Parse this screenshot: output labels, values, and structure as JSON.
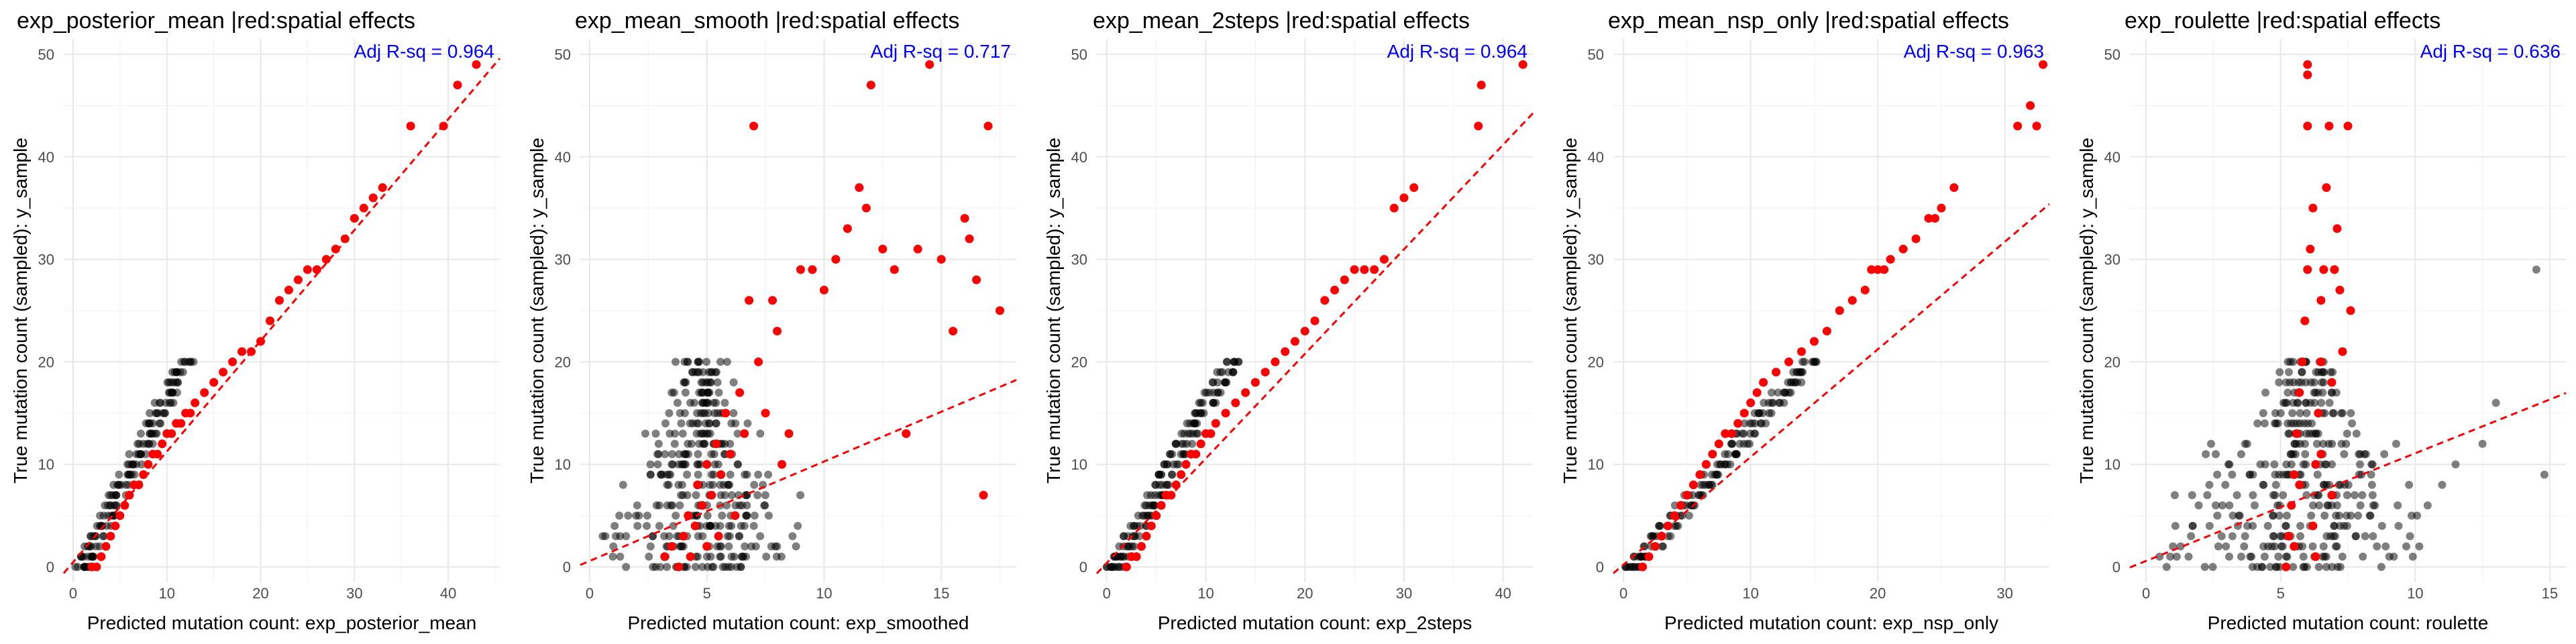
{
  "colors": {
    "red_points": "#ff0000",
    "black_points": "#000000",
    "fit_line": "#ff0000",
    "r2_text": "#0000ff",
    "grid": "#ebebeb"
  },
  "chart_data": [
    {
      "type": "scatter",
      "title": "exp_posterior_mean |red:spatial effects",
      "xlabel": "Predicted mutation count: exp_posterior_mean",
      "ylabel": "True mutation count (sampled): y_sample",
      "annotation": "Adj R-sq = 0.964",
      "xlim": [
        -1,
        45.5
      ],
      "ylim": [
        -1.5,
        51.5
      ],
      "xticks": [
        0,
        10,
        20,
        30,
        40
      ],
      "yticks": [
        0,
        10,
        20,
        30,
        40,
        50
      ],
      "fit": {
        "intercept": 0.46,
        "slope": 1.08
      },
      "pattern": "band",
      "black_scale": 0.55,
      "black_jitter": 1.0,
      "y_black_max": 20,
      "red_points": [
        [
          2,
          0
        ],
        [
          2.5,
          0
        ],
        [
          3,
          1
        ],
        [
          3.5,
          2
        ],
        [
          4,
          3
        ],
        [
          4.5,
          4
        ],
        [
          5,
          5
        ],
        [
          5.5,
          6
        ],
        [
          6,
          7
        ],
        [
          6.5,
          8
        ],
        [
          7,
          8
        ],
        [
          7.5,
          9
        ],
        [
          8,
          10
        ],
        [
          8.5,
          11
        ],
        [
          9,
          11
        ],
        [
          9.5,
          12
        ],
        [
          10,
          13
        ],
        [
          10.5,
          13
        ],
        [
          11,
          14
        ],
        [
          11.5,
          14
        ],
        [
          12,
          15
        ],
        [
          12.5,
          15
        ],
        [
          13,
          16
        ],
        [
          14,
          17
        ],
        [
          15,
          18
        ],
        [
          16,
          19
        ],
        [
          17,
          20
        ],
        [
          18,
          21
        ],
        [
          19,
          21
        ],
        [
          20,
          22
        ],
        [
          21,
          24
        ],
        [
          22,
          26
        ],
        [
          23,
          27
        ],
        [
          24,
          28
        ],
        [
          25,
          29
        ],
        [
          26,
          29
        ],
        [
          27,
          30
        ],
        [
          28,
          31
        ],
        [
          29,
          32
        ],
        [
          30,
          34
        ],
        [
          31,
          35
        ],
        [
          32,
          36
        ],
        [
          33,
          37
        ],
        [
          36,
          43
        ],
        [
          39.5,
          43
        ],
        [
          41,
          47
        ],
        [
          43,
          49
        ]
      ]
    },
    {
      "type": "scatter",
      "title": "exp_mean_smooth |red:spatial effects",
      "xlabel": "Predicted mutation count: exp_smoothed",
      "ylabel": "True mutation count (sampled): y_sample",
      "annotation": "Adj R-sq = 0.717",
      "xlim": [
        -0.4,
        18.2
      ],
      "ylim": [
        -1.5,
        51.5
      ],
      "xticks": [
        0,
        5,
        10,
        15
      ],
      "yticks": [
        0,
        10,
        20,
        30,
        40,
        50
      ],
      "fit": {
        "intercept": 0.58,
        "slope": 0.97
      },
      "pattern": "columns",
      "black_xmin": 0.5,
      "black_xmax": 9,
      "black_center": 4.8,
      "y_black_max": 20,
      "red_points": [
        [
          3.2,
          1
        ],
        [
          3.5,
          2
        ],
        [
          3.8,
          0
        ],
        [
          4,
          3
        ],
        [
          4.2,
          5
        ],
        [
          4.3,
          1
        ],
        [
          4.5,
          4
        ],
        [
          4.6,
          8
        ],
        [
          4.8,
          6
        ],
        [
          5,
          2
        ],
        [
          5,
          10
        ],
        [
          5.2,
          7
        ],
        [
          5.4,
          12
        ],
        [
          5.5,
          3
        ],
        [
          5.6,
          9
        ],
        [
          5.8,
          15
        ],
        [
          6,
          11
        ],
        [
          6.2,
          5
        ],
        [
          6.4,
          17
        ],
        [
          6.6,
          13
        ],
        [
          6.8,
          26
        ],
        [
          7,
          43
        ],
        [
          7.2,
          20
        ],
        [
          7.5,
          15
        ],
        [
          7.8,
          26
        ],
        [
          8,
          23
        ],
        [
          8.2,
          10
        ],
        [
          8.5,
          13
        ],
        [
          9,
          29
        ],
        [
          9.5,
          29
        ],
        [
          10,
          27
        ],
        [
          10.5,
          30
        ],
        [
          11,
          33
        ],
        [
          11.5,
          37
        ],
        [
          11.8,
          35
        ],
        [
          12,
          47
        ],
        [
          12.5,
          31
        ],
        [
          13,
          29
        ],
        [
          13.5,
          13
        ],
        [
          14,
          31
        ],
        [
          14.5,
          49
        ],
        [
          15,
          30
        ],
        [
          15.5,
          23
        ],
        [
          16,
          34
        ],
        [
          16.2,
          32
        ],
        [
          16.5,
          28
        ],
        [
          16.8,
          7
        ],
        [
          17,
          43
        ],
        [
          17.5,
          25
        ]
      ]
    },
    {
      "type": "scatter",
      "title": "exp_mean_2steps |red:spatial effects",
      "xlabel": "Predicted mutation count: exp_2steps",
      "ylabel": "True mutation count (sampled): y_sample",
      "annotation": "Adj R-sq = 0.964",
      "xlim": [
        -1,
        43
      ],
      "ylim": [
        -1.5,
        51.5
      ],
      "xticks": [
        0,
        10,
        20,
        30,
        40
      ],
      "yticks": [
        0,
        10,
        20,
        30,
        40,
        50
      ],
      "fit": {
        "intercept": 0.38,
        "slope": 1.02
      },
      "pattern": "band",
      "black_scale": 0.58,
      "black_jitter": 0.9,
      "y_black_max": 20,
      "red_points": [
        [
          2,
          0
        ],
        [
          2.5,
          1
        ],
        [
          3,
          1
        ],
        [
          3.5,
          2
        ],
        [
          4,
          3
        ],
        [
          4.5,
          4
        ],
        [
          5,
          5
        ],
        [
          5.5,
          6
        ],
        [
          6,
          7
        ],
        [
          6.5,
          7
        ],
        [
          7,
          8
        ],
        [
          7.5,
          9
        ],
        [
          8,
          10
        ],
        [
          8.5,
          11
        ],
        [
          9,
          11
        ],
        [
          9.5,
          12
        ],
        [
          10,
          13
        ],
        [
          10.5,
          13
        ],
        [
          11,
          14
        ],
        [
          12,
          15
        ],
        [
          13,
          16
        ],
        [
          14,
          17
        ],
        [
          15,
          18
        ],
        [
          16,
          19
        ],
        [
          17,
          20
        ],
        [
          18,
          21
        ],
        [
          19,
          22
        ],
        [
          20,
          23
        ],
        [
          21,
          24
        ],
        [
          22,
          26
        ],
        [
          23,
          27
        ],
        [
          24,
          28
        ],
        [
          25,
          29
        ],
        [
          26,
          29
        ],
        [
          27,
          29
        ],
        [
          28,
          30
        ],
        [
          29,
          35
        ],
        [
          30,
          36
        ],
        [
          31,
          37
        ],
        [
          37.5,
          43
        ],
        [
          37.8,
          47
        ],
        [
          42,
          49
        ]
      ]
    },
    {
      "type": "scatter",
      "title": "exp_mean_nsp_only |red:spatial effects",
      "xlabel": "Predicted mutation count: exp_nsp_only",
      "ylabel": "True mutation count (sampled): y_sample",
      "annotation": "Adj R-sq = 0.963",
      "xlim": [
        -0.8,
        33.5
      ],
      "ylim": [
        -1.5,
        51.5
      ],
      "xticks": [
        0,
        10,
        20,
        30
      ],
      "yticks": [
        0,
        10,
        20,
        30,
        40,
        50
      ],
      "fit": {
        "intercept": 0.22,
        "slope": 1.05
      },
      "pattern": "band",
      "black_scale": 0.68,
      "black_jitter": 0.9,
      "y_black_max": 20,
      "red_points": [
        [
          1.5,
          0
        ],
        [
          2,
          1
        ],
        [
          2.5,
          2
        ],
        [
          3,
          3
        ],
        [
          3.5,
          4
        ],
        [
          4,
          5
        ],
        [
          4.5,
          6
        ],
        [
          5,
          7
        ],
        [
          5.5,
          8
        ],
        [
          6,
          9
        ],
        [
          6.5,
          10
        ],
        [
          7,
          11
        ],
        [
          7.5,
          12
        ],
        [
          8,
          13
        ],
        [
          8.5,
          13
        ],
        [
          9,
          14
        ],
        [
          9.5,
          15
        ],
        [
          10,
          16
        ],
        [
          10.5,
          17
        ],
        [
          11,
          18
        ],
        [
          12,
          19
        ],
        [
          13,
          20
        ],
        [
          14,
          21
        ],
        [
          15,
          22
        ],
        [
          16,
          23
        ],
        [
          17,
          25
        ],
        [
          18,
          26
        ],
        [
          19,
          27
        ],
        [
          19.5,
          29
        ],
        [
          20,
          29
        ],
        [
          20.5,
          29
        ],
        [
          21,
          30
        ],
        [
          22,
          31
        ],
        [
          23,
          32
        ],
        [
          24,
          34
        ],
        [
          24.5,
          34
        ],
        [
          25,
          35
        ],
        [
          26,
          37
        ],
        [
          31,
          43
        ],
        [
          32,
          45
        ],
        [
          32.5,
          43
        ],
        [
          33,
          49
        ]
      ]
    },
    {
      "type": "scatter",
      "title": "exp_roulette |red:spatial effects",
      "xlabel": "Predicted mutation count: roulette",
      "ylabel": "True mutation count (sampled): y_sample",
      "annotation": "Adj R-sq = 0.636",
      "xlim": [
        -0.6,
        15.6
      ],
      "ylim": [
        -1.5,
        51.5
      ],
      "xticks": [
        0,
        5,
        10,
        15
      ],
      "yticks": [
        0,
        10,
        20,
        30,
        40,
        50
      ],
      "fit": {
        "intercept": 0.58,
        "slope": 1.05
      },
      "pattern": "columns",
      "black_xmin": 0.3,
      "black_xmax": 10.5,
      "black_center": 5.8,
      "y_black_max": 20,
      "extra_black": [
        [
          13,
          16
        ],
        [
          14.5,
          29
        ],
        [
          14.8,
          9
        ],
        [
          12.5,
          12
        ],
        [
          11.5,
          10
        ],
        [
          11,
          8
        ],
        [
          0.5,
          1
        ],
        [
          1,
          2
        ]
      ],
      "red_points": [
        [
          5.2,
          0
        ],
        [
          5.3,
          3
        ],
        [
          5.4,
          6
        ],
        [
          5.5,
          2
        ],
        [
          5.5,
          9
        ],
        [
          5.6,
          13
        ],
        [
          5.7,
          17
        ],
        [
          5.8,
          20
        ],
        [
          5.9,
          24
        ],
        [
          6,
          49
        ],
        [
          6,
          48
        ],
        [
          6,
          43
        ],
        [
          6,
          29
        ],
        [
          6.1,
          31
        ],
        [
          6.2,
          35
        ],
        [
          6.2,
          4
        ],
        [
          6.3,
          10
        ],
        [
          6.4,
          15
        ],
        [
          6.5,
          20
        ],
        [
          6.5,
          26
        ],
        [
          6.6,
          29
        ],
        [
          6.7,
          37
        ],
        [
          6.8,
          43
        ],
        [
          6.9,
          18
        ],
        [
          7,
          29
        ],
        [
          7.1,
          33
        ],
        [
          7.2,
          27
        ],
        [
          7.3,
          21
        ],
        [
          7.5,
          43
        ],
        [
          7.6,
          25
        ],
        [
          6.9,
          7
        ],
        [
          6.5,
          11
        ],
        [
          5.7,
          8
        ],
        [
          6.3,
          1
        ]
      ]
    }
  ]
}
